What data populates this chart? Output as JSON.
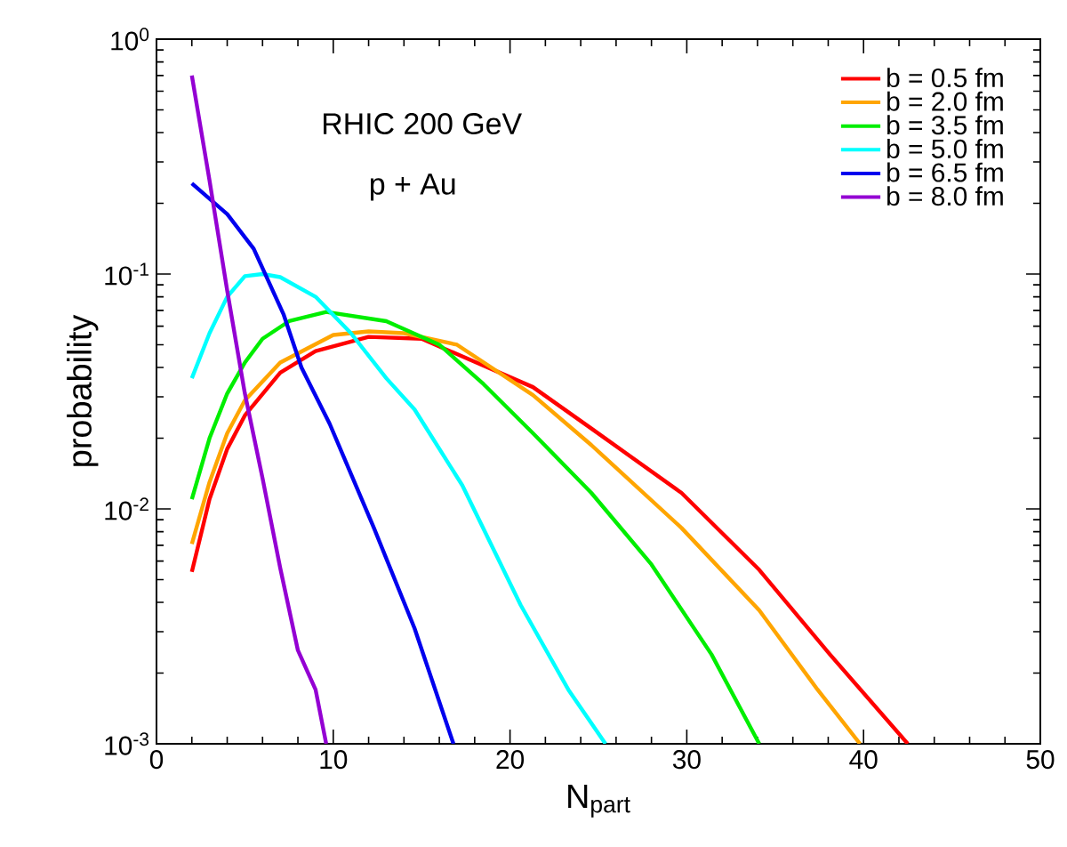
{
  "chart_data": {
    "type": "line",
    "xlabel": "N$_{part}$",
    "ylabel": "probability",
    "log": "y",
    "annotations": [
      "RHIC 200 GeV",
      "p + Au"
    ],
    "xlim": [
      0,
      50
    ],
    "xticks": [
      0,
      10,
      20,
      30,
      40,
      50
    ],
    "ylim": [
      0.001,
      1
    ],
    "yticks": [
      {
        "value": 0.001,
        "label": "10$^{-3}$"
      },
      {
        "value": 0.01,
        "label": "10$^{-2}$"
      },
      {
        "value": 0.1,
        "label": "10$^{-1}$"
      },
      {
        "value": 1,
        "label": "10$^{0}$"
      }
    ],
    "grid": false,
    "legend": "top right",
    "marker": "none",
    "line_style": "solid",
    "series": [
      {
        "name": "b = 0.5 fm",
        "color": "#ff0000",
        "x": [
          2,
          3,
          4,
          5,
          7,
          9,
          12,
          15,
          21.3,
          24.6,
          29.7,
          34.1,
          38.1,
          42.5
        ],
        "values": [
          0.0054,
          0.011,
          0.018,
          0.025,
          0.038,
          0.047,
          0.054,
          0.053,
          0.033,
          0.022,
          0.0117,
          0.0055,
          0.0024,
          0.001
        ]
      },
      {
        "name": "b = 2.0 fm",
        "color": "#ffa500",
        "x": [
          2,
          3,
          4,
          5,
          7,
          10,
          12,
          14,
          17,
          21.3,
          24.6,
          29.7,
          34.1,
          37.4,
          39.8
        ],
        "values": [
          0.0071,
          0.013,
          0.021,
          0.029,
          0.042,
          0.055,
          0.057,
          0.056,
          0.05,
          0.0305,
          0.0187,
          0.0083,
          0.0037,
          0.0017,
          0.001
        ]
      },
      {
        "name": "b = 3.5 fm",
        "color": "#00ee00",
        "x": [
          2,
          3,
          4,
          5,
          6,
          7.5,
          9.6,
          13,
          16,
          18.5,
          21.3,
          24.6,
          28,
          31.4,
          34.1
        ],
        "values": [
          0.011,
          0.02,
          0.031,
          0.042,
          0.053,
          0.063,
          0.069,
          0.063,
          0.05,
          0.034,
          0.021,
          0.0117,
          0.0058,
          0.0024,
          0.001
        ]
      },
      {
        "name": "b = 5.0 fm",
        "color": "#00ffff",
        "x": [
          2,
          3,
          4,
          5,
          6,
          7,
          9,
          11,
          13,
          14.6,
          17.3,
          20.6,
          23.3,
          25.4
        ],
        "values": [
          0.036,
          0.056,
          0.08,
          0.098,
          0.1,
          0.097,
          0.08,
          0.056,
          0.036,
          0.0265,
          0.0126,
          0.0039,
          0.0017,
          0.001
        ]
      },
      {
        "name": "b = 6.5 fm",
        "color": "#0000ee",
        "x": [
          2,
          4,
          5.5,
          7.2,
          8.2,
          9.8,
          12.3,
          14.6,
          16.8
        ],
        "values": [
          0.243,
          0.18,
          0.128,
          0.067,
          0.04,
          0.023,
          0.0083,
          0.0031,
          0.001
        ]
      },
      {
        "name": "b = 8.0 fm",
        "color": "#9400d3",
        "x": [
          2,
          3,
          4,
          5,
          6,
          7,
          8,
          9,
          9.6
        ],
        "values": [
          0.7,
          0.25,
          0.085,
          0.031,
          0.0135,
          0.0056,
          0.0025,
          0.0017,
          0.001
        ]
      }
    ]
  }
}
